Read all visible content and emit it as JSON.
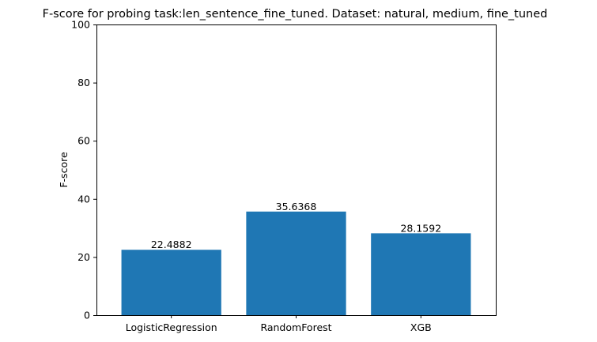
{
  "chart_data": {
    "type": "bar",
    "title": "F-score for probing task:len_sentence_fine_tuned. Dataset: natural, medium, fine_tuned",
    "xlabel": "",
    "ylabel": "F-score",
    "categories": [
      "LogisticRegression",
      "RandomForest",
      "XGB"
    ],
    "values": [
      22.4882,
      35.6368,
      28.1592
    ],
    "value_labels": [
      "22.4882",
      "35.6368",
      "28.1592"
    ],
    "ylim": [
      0,
      100
    ],
    "yticks": [
      0,
      20,
      40,
      60,
      80,
      100
    ],
    "bar_color": "#1f77b4",
    "grid": false
  }
}
